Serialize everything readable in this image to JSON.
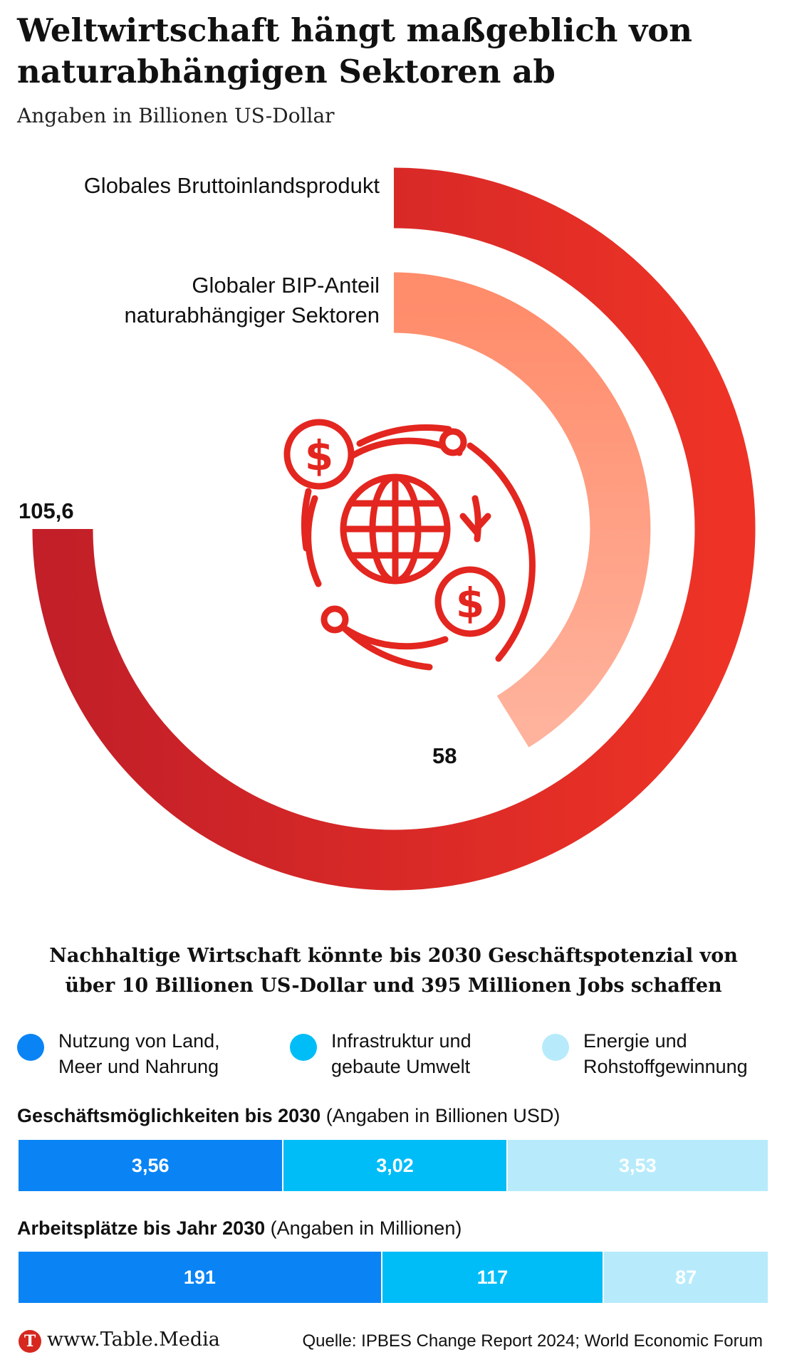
{
  "title": "Weltwirtschaft hängt maßgeblich von naturabhängigen Sektoren ab",
  "subtitle": "Angaben in Billionen US-Dollar",
  "chart_data": [
    {
      "type": "radial-bar",
      "series": [
        {
          "name": "Globales Bruttoinlandsprodukt",
          "value": 105.6,
          "value_label": "105,6",
          "color": "#d42a25"
        },
        {
          "name": "Globaler BIP-Anteil naturabhängiger Sektoren",
          "value": 58,
          "value_label": "58",
          "color": "#ff9a78"
        }
      ],
      "icon": "dollar-globe-cycle-icon"
    },
    {
      "type": "bar",
      "title": "Nachhaltige Wirtschaft könnte bis 2030 Geschäftspotenzial von über 10 Billionen US-Dollar und 395 Millionen Jobs schaffen",
      "legend": [
        {
          "name": "Nutzung von Land, Meer und Nahrung",
          "color": "#0a84f5"
        },
        {
          "name": "Infrastruktur und gebaute Umwelt",
          "color": "#00bdf7"
        },
        {
          "name": "Energie und Rohstoffgewinnung",
          "color": "#b7ebfb"
        }
      ],
      "bars": [
        {
          "label_bold": "Geschäftsmöglichkeiten bis 2030",
          "label_unit": "(Angaben in Billionen USD)",
          "values": [
            3.56,
            3.02,
            3.53
          ],
          "value_labels": [
            "3,56",
            "3,02",
            "3,53"
          ]
        },
        {
          "label_bold": "Arbeitsplätze bis Jahr 2030",
          "label_unit": "(Angaben in Millionen)",
          "values": [
            191,
            117,
            87
          ],
          "value_labels": [
            "191",
            "117",
            "87"
          ]
        }
      ]
    }
  ],
  "footer": {
    "logo_letter": "T",
    "site": "www.Table.Media",
    "source": "Quelle: IPBES Change Report 2024; World Economic Forum"
  }
}
